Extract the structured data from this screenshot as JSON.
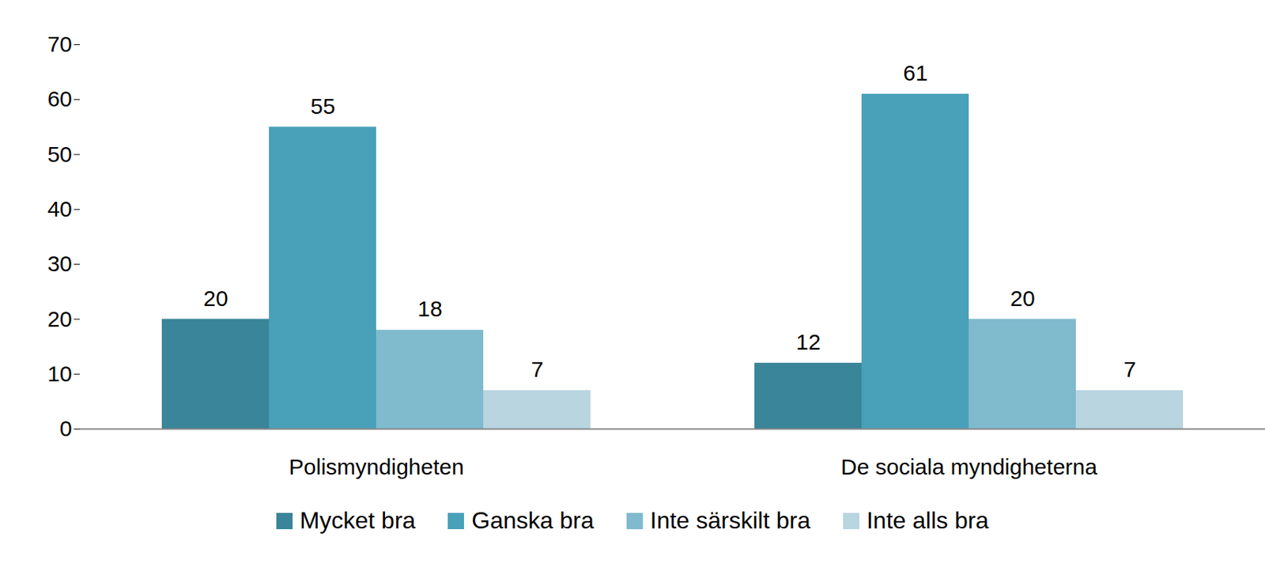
{
  "chart_data": {
    "type": "bar",
    "categories": [
      "Polismyndigheten",
      "De sociala myndigheterna"
    ],
    "series": [
      {
        "name": "Mycket bra",
        "color": "#3a8599",
        "values": [
          20,
          12
        ]
      },
      {
        "name": "Ganska bra",
        "color": "#48a1b9",
        "values": [
          55,
          61
        ]
      },
      {
        "name": "Inte särskilt bra",
        "color": "#7fbacd",
        "values": [
          18,
          20
        ]
      },
      {
        "name": "Inte alls bra",
        "color": "#b8d5e0",
        "values": [
          7,
          7
        ]
      }
    ],
    "ylim": [
      0,
      70
    ],
    "yticks": [
      0,
      10,
      20,
      30,
      40,
      50,
      60,
      70
    ],
    "data_labels": true,
    "legend": "bottom",
    "grid": false
  }
}
